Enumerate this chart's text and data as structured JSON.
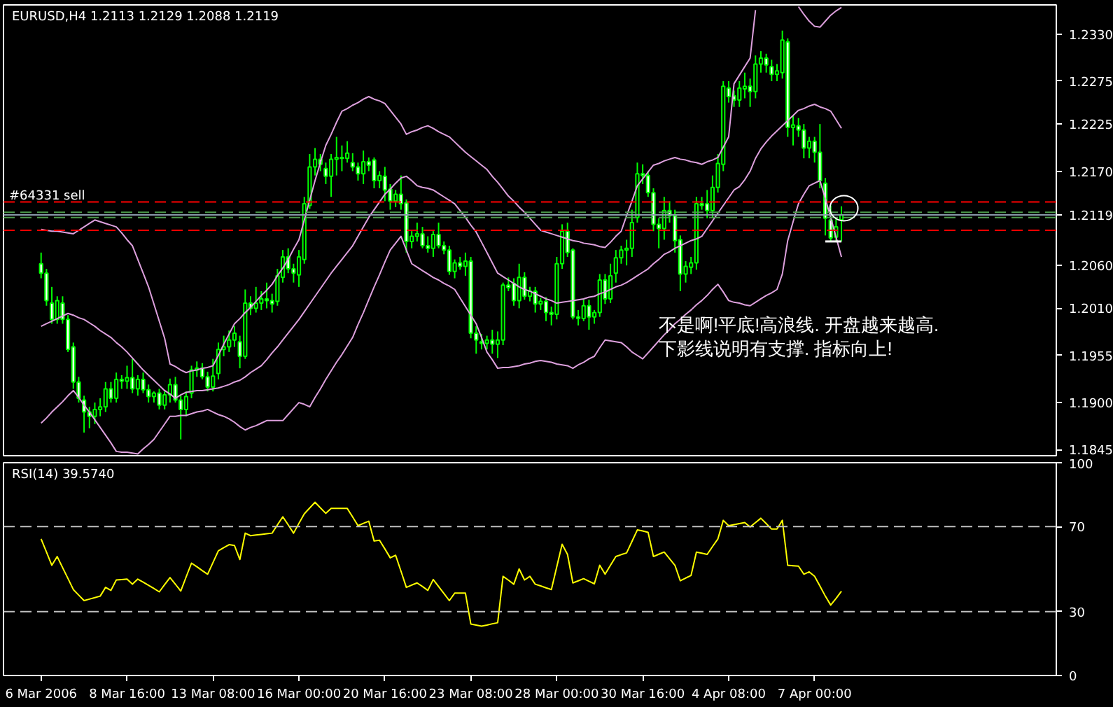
{
  "chart_data": [
    {
      "type": "candlestick",
      "title": "EURUSD,H4  1.2113 1.2129 1.2088 1.2119",
      "annotations": [
        "不是啊!平底!高浪线. 开盘越来越高.",
        "下影线说明有支撑. 指标向上!"
      ],
      "categories": [
        null,
        null,
        null,
        null,
        null,
        null,
        null,
        null,
        null,
        null,
        null,
        null,
        null,
        null,
        null,
        null,
        null,
        null,
        null,
        null,
        null,
        null,
        null,
        null,
        null,
        null,
        null,
        null,
        null,
        null,
        null,
        null,
        null,
        null,
        null,
        null,
        null,
        null,
        null,
        null,
        null,
        null,
        null,
        null,
        null,
        null,
        null,
        null,
        null,
        null,
        null,
        null,
        null,
        null,
        null,
        null,
        null,
        null,
        null,
        null,
        null,
        null,
        null,
        null,
        null,
        null,
        null,
        null,
        null,
        null,
        null,
        null,
        null,
        null,
        null,
        null,
        null,
        null,
        null,
        null,
        null,
        null,
        null,
        null,
        null,
        null,
        null,
        null,
        null,
        null,
        null,
        null,
        null,
        null,
        null,
        null,
        null,
        null,
        null,
        null,
        null,
        null,
        null,
        null,
        null,
        null,
        null,
        null,
        null,
        null,
        null,
        null,
        null,
        null,
        null,
        null,
        null,
        null,
        null,
        null,
        null,
        null,
        null,
        null,
        null,
        null,
        null,
        null,
        null,
        null,
        null,
        null,
        null,
        null,
        null,
        null,
        null,
        null,
        null,
        null,
        null,
        null,
        null,
        null,
        null,
        null,
        null,
        null,
        null,
        null
      ],
      "ylim": [
        1.1838,
        1.2364
      ],
      "yticks": [
        1.1845,
        {
          "value": 1.19,
          "label": "1.1900"
        },
        1.1955,
        {
          "value": 1.201,
          "label": "1.2010"
        },
        {
          "value": 1.206,
          "label": "1.2060"
        },
        1.2119,
        {
          "value": 1.217,
          "label": "1.2170"
        },
        1.2225,
        1.2275,
        {
          "value": 1.233,
          "label": "1.2330"
        }
      ],
      "tick_labels": "y",
      "grid": false,
      "ref_lines": [
        {
          "axis": "y",
          "value": 1.2134,
          "color": "#ff0000",
          "line_style": "dashed",
          "label": null
        },
        {
          "axis": "y",
          "value": 1.2122,
          "color": "#4c9a4c",
          "line_style": "dashed",
          "label": "#64331 sell"
        },
        {
          "axis": "y",
          "value": 1.2116,
          "color": "#4c9a4c",
          "line_style": "dashed",
          "label": null
        },
        {
          "axis": "y",
          "value": 1.2119,
          "color": "#8a9aaa",
          "line_style": "solid",
          "label": null
        },
        {
          "axis": "y",
          "value": 1.2101,
          "color": "#ff0000",
          "line_style": "dashed",
          "label": null
        }
      ],
      "series": [
        {
          "type": "candlestick",
          "color": "#00ff00",
          "ohlc": [
            [
              1.2062,
              1.2075,
              1.2045,
              1.2051
            ],
            [
              1.2051,
              1.2056,
              1.2013,
              1.2019
            ],
            [
              1.2016,
              1.2035,
              1.1992,
              1.1997
            ],
            [
              1.1997,
              1.2024,
              1.1992,
              1.2019
            ],
            [
              1.2016,
              1.2024,
              1.1992,
              1.1997
            ],
            [
              1.1997,
              1.2002,
              1.1959,
              1.1962
            ],
            [
              1.1965,
              1.197,
              1.1916,
              1.1924
            ],
            [
              1.1924,
              1.193,
              1.19,
              1.1905
            ],
            [
              1.1903,
              1.1908,
              1.1865,
              1.1889
            ],
            [
              1.1889,
              1.1895,
              1.187,
              1.1884
            ],
            [
              1.1884,
              1.19,
              1.1875,
              1.1892
            ],
            [
              1.1892,
              1.1905,
              1.1884,
              1.1895
            ],
            [
              1.1895,
              1.1924,
              1.1889,
              1.1916
            ],
            [
              1.1916,
              1.1924,
              1.19,
              1.1905
            ],
            [
              1.1905,
              1.1935,
              1.19,
              1.1927
            ],
            [
              1.1927,
              1.1932,
              1.1916,
              1.1925
            ],
            [
              1.1925,
              1.1943,
              1.1916,
              1.1929
            ],
            [
              1.1929,
              1.1951,
              1.1911,
              1.1916
            ],
            [
              1.1916,
              1.1932,
              1.1908,
              1.1927
            ],
            [
              1.1927,
              1.1935,
              1.1911,
              1.1915
            ],
            [
              1.1915,
              1.1921,
              1.19,
              1.1907
            ],
            [
              1.1907,
              1.1913,
              1.19,
              1.1911
            ],
            [
              1.1911,
              1.1916,
              1.1892,
              1.1897
            ],
            [
              1.1897,
              1.1913,
              1.1892,
              1.1909
            ],
            [
              1.1909,
              1.1928,
              1.19,
              1.1921
            ],
            [
              1.1921,
              1.193,
              1.19,
              1.1903
            ],
            [
              1.1903,
              1.1908,
              1.1857,
              1.1892
            ],
            [
              1.1892,
              1.1913,
              1.1884,
              1.1907
            ],
            [
              1.1911,
              1.1943,
              1.1905,
              1.1938
            ],
            [
              1.1938,
              1.1948,
              1.193,
              1.194
            ],
            [
              1.194,
              1.1946,
              1.1927,
              1.193
            ],
            [
              1.193,
              1.1936,
              1.1913,
              1.1918
            ],
            [
              1.1918,
              1.1951,
              1.1913,
              1.1931
            ],
            [
              1.1934,
              1.197,
              1.1927,
              1.1962
            ],
            [
              1.1962,
              1.1978,
              1.1954,
              1.1965
            ],
            [
              1.1965,
              1.1984,
              1.1959,
              1.1973
            ],
            [
              1.1973,
              1.1989,
              1.1965,
              1.1981
            ],
            [
              1.1971,
              1.1978,
              1.194,
              1.1954
            ],
            [
              1.1954,
              1.2032,
              1.1951,
              1.2016
            ],
            [
              1.2016,
              1.2024,
              1.2002,
              1.201
            ],
            [
              1.201,
              1.2035,
              1.2005,
              1.2016
            ],
            [
              1.2016,
              1.203,
              1.2008,
              1.2021
            ],
            [
              1.2021,
              1.204,
              1.201,
              1.2019
            ],
            [
              1.2019,
              1.2027,
              1.2005,
              1.2015
            ],
            [
              1.2018,
              1.2056,
              1.2013,
              1.2048
            ],
            [
              1.2046,
              1.2078,
              1.204,
              1.207
            ],
            [
              1.207,
              1.208,
              1.2051,
              1.2056
            ],
            [
              1.2056,
              1.2062,
              1.204,
              1.2051
            ],
            [
              1.2049,
              1.2078,
              1.2035,
              1.207
            ],
            [
              1.2067,
              1.214,
              1.2062,
              1.2132
            ],
            [
              1.213,
              1.219,
              1.2126,
              1.2175
            ],
            [
              1.2175,
              1.2197,
              1.2165,
              1.2184
            ],
            [
              1.2184,
              1.219,
              1.217,
              1.2178
            ],
            [
              1.2173,
              1.218,
              1.2155,
              1.2164
            ],
            [
              1.2164,
              1.219,
              1.214,
              1.2184
            ],
            [
              1.2184,
              1.221,
              1.2165,
              1.2186
            ],
            [
              1.2186,
              1.22,
              1.217,
              1.2185
            ],
            [
              1.2185,
              1.2205,
              1.218,
              1.2191
            ],
            [
              1.218,
              1.2191,
              1.217,
              1.2175
            ],
            [
              1.2175,
              1.218,
              1.2159,
              1.2167
            ],
            [
              1.2167,
              1.2194,
              1.2155,
              1.2181
            ],
            [
              1.2181,
              1.2186,
              1.217,
              1.2177
            ],
            [
              1.2183,
              1.2186,
              1.215,
              1.2159
            ],
            [
              1.2159,
              1.217,
              1.215,
              1.2165
            ],
            [
              1.2164,
              1.2175,
              1.2135,
              1.2148
            ],
            [
              1.2149,
              1.2155,
              1.2125,
              1.2135
            ],
            [
              1.2135,
              1.2148,
              1.2128,
              1.2143
            ],
            [
              1.2143,
              1.2165,
              1.2125,
              1.2132
            ],
            [
              1.2133,
              1.2137,
              1.2075,
              1.2088
            ],
            [
              1.2088,
              1.21,
              1.208,
              1.2094
            ],
            [
              1.2094,
              1.211,
              1.2088,
              1.2097
            ],
            [
              1.2097,
              1.2105,
              1.208,
              1.2083
            ],
            [
              1.2083,
              1.2094,
              1.2075,
              1.208
            ],
            [
              1.208,
              1.21,
              1.207,
              1.2096
            ],
            [
              1.2096,
              1.211,
              1.208,
              1.2083
            ],
            [
              1.2083,
              1.2088,
              1.2073,
              1.2078
            ],
            [
              1.2078,
              1.2083,
              1.2049,
              1.2053
            ],
            [
              1.2053,
              1.2067,
              1.2045,
              1.2063
            ],
            [
              1.2063,
              1.207,
              1.2055,
              1.2059
            ],
            [
              1.2059,
              1.2075,
              1.2048,
              1.2065
            ],
            [
              1.2065,
              1.207,
              1.1975,
              1.1981
            ],
            [
              1.1981,
              1.1989,
              1.1957,
              1.1973
            ],
            [
              1.1971,
              1.198,
              1.1962,
              1.1969
            ],
            [
              1.1969,
              1.1978,
              1.1962,
              1.1973
            ],
            [
              1.1973,
              1.1985,
              1.1957,
              1.1968
            ],
            [
              1.1968,
              1.1983,
              1.1952,
              1.1973
            ],
            [
              1.1973,
              1.204,
              1.1967,
              1.2037
            ],
            [
              1.2037,
              1.2046,
              1.203,
              1.2034
            ],
            [
              1.2039,
              1.2045,
              1.2013,
              1.2019
            ],
            [
              1.2019,
              1.2062,
              1.201,
              1.2046
            ],
            [
              1.2046,
              1.2052,
              1.202,
              1.2024
            ],
            [
              1.2024,
              1.2035,
              1.2018,
              1.203
            ],
            [
              1.203,
              1.2035,
              1.2005,
              1.2015
            ],
            [
              1.2015,
              1.2022,
              1.2008,
              1.2018
            ],
            [
              1.2018,
              1.2023,
              1.1995,
              1.2005
            ],
            [
              1.2005,
              1.2012,
              1.199,
              1.2003
            ],
            [
              1.2003,
              1.207,
              1.1997,
              1.2062
            ],
            [
              1.2062,
              1.2108,
              1.2056,
              1.21
            ],
            [
              1.21,
              1.211,
              1.207,
              1.2075
            ],
            [
              1.2078,
              1.208,
              1.1997,
              1.2
            ],
            [
              1.2,
              1.2008,
              1.199,
              1.1998
            ],
            [
              1.1998,
              1.202,
              1.1995,
              1.2013
            ],
            [
              1.2013,
              1.202,
              1.1985,
              1.2
            ],
            [
              1.2,
              1.2008,
              1.1992,
              1.2005
            ],
            [
              1.2005,
              1.205,
              1.2,
              1.2043
            ],
            [
              1.2043,
              1.205,
              1.2015,
              1.2021
            ],
            [
              1.2021,
              1.2062,
              1.2016,
              1.2048
            ],
            [
              1.2051,
              1.2078,
              1.204,
              1.2069
            ],
            [
              1.2069,
              1.2083,
              1.2062,
              1.2078
            ],
            [
              1.2078,
              1.209,
              1.206,
              1.208
            ],
            [
              1.208,
              1.2125,
              1.207,
              1.211
            ],
            [
              1.2116,
              1.218,
              1.211,
              1.2167
            ],
            [
              1.2167,
              1.2178,
              1.2155,
              1.2165
            ],
            [
              1.2165,
              1.217,
              1.214,
              1.2145
            ],
            [
              1.2145,
              1.215,
              1.21,
              1.2108
            ],
            [
              1.2108,
              1.2115,
              1.208,
              1.2103
            ],
            [
              1.2103,
              1.214,
              1.209,
              1.2124
            ],
            [
              1.2124,
              1.2135,
              1.211,
              1.2118
            ],
            [
              1.2118,
              1.2125,
              1.2075,
              1.2089
            ],
            [
              1.209,
              1.2095,
              1.203,
              1.205
            ],
            [
              1.205,
              1.2065,
              1.204,
              1.2059
            ],
            [
              1.2058,
              1.207,
              1.205,
              1.2063
            ],
            [
              1.2063,
              1.214,
              1.2055,
              1.2132
            ],
            [
              1.2132,
              1.214,
              1.2125,
              1.213
            ],
            [
              1.2132,
              1.2148,
              1.2115,
              1.2124
            ],
            [
              1.2124,
              1.2165,
              1.2115,
              1.2151
            ],
            [
              1.2151,
              1.219,
              1.2145,
              1.2179
            ],
            [
              1.2178,
              1.2275,
              1.217,
              1.2269
            ],
            [
              1.2267,
              1.2275,
              1.225,
              1.2257
            ],
            [
              1.2258,
              1.2264,
              1.2245,
              1.2253
            ],
            [
              1.2253,
              1.2275,
              1.2245,
              1.2267
            ],
            [
              1.2266,
              1.2285,
              1.2255,
              1.2269
            ],
            [
              1.2269,
              1.2278,
              1.2245,
              1.2263
            ],
            [
              1.2263,
              1.2305,
              1.2255,
              1.2295
            ],
            [
              1.2295,
              1.231,
              1.2285,
              1.2302
            ],
            [
              1.2302,
              1.2307,
              1.2285,
              1.2294
            ],
            [
              1.2292,
              1.23,
              1.2275,
              1.2283
            ],
            [
              1.2283,
              1.2295,
              1.2275,
              1.2287
            ],
            [
              1.2285,
              1.2334,
              1.2278,
              1.2323
            ],
            [
              1.2321,
              1.2325,
              1.221,
              1.2221
            ],
            [
              1.2221,
              1.2235,
              1.22,
              1.2224
            ],
            [
              1.2223,
              1.2232,
              1.221,
              1.2218
            ],
            [
              1.2218,
              1.2225,
              1.2185,
              1.2197
            ],
            [
              1.2197,
              1.221,
              1.2185,
              1.2205
            ],
            [
              1.2205,
              1.221,
              1.218,
              1.2192
            ],
            [
              1.2192,
              1.2225,
              1.215,
              1.2159
            ],
            [
              1.2156,
              1.2162,
              1.2095,
              1.2115
            ],
            [
              1.2113,
              1.213,
              1.2088,
              1.2092
            ],
            [
              1.2093,
              1.2115,
              1.2088,
              1.2105
            ],
            [
              1.2113,
              1.2129,
              1.2088,
              1.2119
            ]
          ]
        },
        {
          "type": "line",
          "color": "#dda0dd",
          "values": [
            1.2102,
            1.2101,
            1.21,
            1.21,
            1.2099,
            1.2098,
            1.2097,
            1.2101,
            1.2105,
            1.2109,
            1.2113,
            1.2111,
            1.2109,
            1.2107,
            1.2105,
            1.2098,
            1.209,
            1.2083,
            1.2067,
            1.2051,
            1.2035,
            1.2015,
            1.1995,
            1.1975,
            1.1945,
            1.1942,
            1.1938,
            1.1935,
            1.1937,
            1.1938,
            1.194,
            1.1941,
            1.1943,
            1.1955,
            1.1968,
            1.198,
            1.1992,
            1.1998,
            1.2005,
            1.2011,
            1.2018,
            1.2025,
            1.2031,
            1.2038,
            1.2048,
            1.2057,
            1.2067,
            1.2079,
            1.209,
            1.2113,
            1.2136,
            1.2159,
            1.218,
            1.22,
            1.2213,
            1.2227,
            1.224,
            1.2243,
            1.2247,
            1.225,
            1.2254,
            1.2257,
            1.2254,
            1.2252,
            1.2249,
            1.2241,
            1.2233,
            1.2225,
            1.2213,
            1.2216,
            1.2218,
            1.2221,
            1.2223,
            1.222,
            1.2216,
            1.2213,
            1.221,
            1.2204,
            1.2198,
            1.2192,
            1.2187,
            1.2182,
            1.2177,
            1.2172,
            1.2164,
            1.2157,
            1.2149,
            1.2141,
            1.2135,
            1.2128,
            1.2122,
            1.2115,
            1.2108,
            1.2101,
            1.2099,
            1.2097,
            1.2095,
            1.2093,
            1.2091,
            1.2089,
            1.2088,
            1.2086,
            1.2085,
            1.2084,
            1.2082,
            1.2081,
            1.2087,
            1.2094,
            1.21,
            1.2118,
            1.2135,
            1.2153,
            1.2161,
            1.2169,
            1.2177,
            1.2179,
            1.2182,
            1.2184,
            1.2186,
            1.2184,
            1.2183,
            1.2181,
            1.218,
            1.2178,
            1.2181,
            1.2183,
            1.2186,
            1.2198,
            1.221,
            1.2272,
            1.2282,
            1.2292,
            1.2302,
            1.2358,
            null,
            null,
            null,
            null,
            null,
            null,
            null,
            1.2362,
            1.2353,
            1.2345,
            1.2339,
            1.2338,
            1.2345,
            1.2352,
            1.2357,
            1.2361
          ]
        },
        {
          "type": "line",
          "color": "#dda0dd",
          "values": [
            1.1989,
            1.1992,
            1.1995,
            1.1998,
            1.2001,
            1.2004,
            1.2002,
            1.1999,
            1.1997,
            1.1993,
            1.1989,
            1.1984,
            1.198,
            1.1976,
            1.197,
            1.1965,
            1.1959,
            1.1952,
            1.1945,
            1.1938,
            1.1932,
            1.1926,
            1.192,
            1.1914,
            1.191,
            1.1905,
            1.1909,
            1.1912,
            1.1913,
            1.1914,
            1.1914,
            1.1915,
            1.1916,
            1.1917,
            1.1919,
            1.1921,
            1.1924,
            1.1926,
            1.193,
            1.1935,
            1.1939,
            1.1943,
            1.195,
            1.1958,
            1.1965,
            1.1973,
            1.1981,
            1.1989,
            1.1997,
            1.2006,
            1.2015,
            1.2024,
            1.2033,
            1.2042,
            1.2051,
            1.2059,
            1.2067,
            1.2075,
            1.2083,
            1.2094,
            1.2105,
            1.2116,
            1.2125,
            1.2134,
            1.2143,
            1.2149,
            1.2156,
            1.2162,
            1.2164,
            1.2159,
            1.2153,
            1.2151,
            1.215,
            1.2148,
            1.2144,
            1.214,
            1.2136,
            1.2132,
            1.2124,
            1.2116,
            1.2107,
            1.2099,
            1.2087,
            1.2075,
            1.2063,
            1.2051,
            1.2047,
            1.2043,
            1.2039,
            1.2035,
            1.2032,
            1.203,
            1.2027,
            1.2024,
            1.2021,
            1.2019,
            1.2016,
            1.2017,
            1.2018,
            1.2019,
            1.202,
            1.2021,
            1.2023,
            1.2024,
            1.2027,
            1.2029,
            1.2032,
            1.2035,
            1.2037,
            1.204,
            1.2044,
            1.2048,
            1.2052,
            1.2056,
            1.2062,
            1.2067,
            1.2073,
            1.2076,
            1.208,
            1.2083,
            1.2086,
            1.2089,
            1.2091,
            1.2094,
            1.2103,
            1.2112,
            1.2121,
            1.213,
            1.2139,
            1.2148,
            1.2152,
            1.216,
            1.217,
            1.2185,
            1.2196,
            1.2204,
            1.2211,
            1.2217,
            1.2223,
            1.2229,
            1.2235,
            1.2241,
            1.2243,
            1.2246,
            1.2248,
            1.2245,
            1.2243,
            1.224,
            1.223,
            1.222
          ]
        },
        {
          "type": "line",
          "color": "#dda0dd",
          "values": [
            1.1876,
            1.1882,
            1.1889,
            1.1895,
            1.1901,
            1.1908,
            1.1914,
            1.1906,
            1.1897,
            1.1889,
            1.188,
            1.1871,
            1.1862,
            1.1853,
            1.1843,
            1.1842,
            1.1842,
            1.1841,
            1.184,
            1.1846,
            1.1851,
            1.1857,
            1.1866,
            1.1875,
            1.1884,
            1.1884,
            1.1885,
            1.1885,
            1.1887,
            1.1889,
            1.189,
            1.1892,
            1.1889,
            1.1886,
            1.1884,
            1.1881,
            1.1877,
            1.1872,
            1.1868,
            1.1871,
            1.1873,
            1.1876,
            1.1879,
            1.1879,
            1.1879,
            1.1879,
            1.1886,
            1.1893,
            1.19,
            1.1898,
            1.1895,
            1.1906,
            1.1916,
            1.1927,
            1.1937,
            1.1947,
            1.1956,
            1.1966,
            1.1976,
            1.1991,
            1.2005,
            1.202,
            1.2035,
            1.2049,
            1.2064,
            1.2078,
            1.2086,
            1.2094,
            1.2078,
            1.2062,
            1.2058,
            1.2054,
            1.205,
            1.2046,
            1.2043,
            1.2039,
            1.2036,
            1.2032,
            1.2022,
            1.2012,
            1.2002,
            1.1992,
            1.1976,
            1.1959,
            1.195,
            1.194,
            1.1941,
            1.1941,
            1.1942,
            1.1943,
            1.1945,
            1.1946,
            1.1948,
            1.1949,
            1.1948,
            1.1947,
            1.1945,
            1.1944,
            1.1943,
            1.194,
            1.1944,
            1.1947,
            1.1951,
            1.1954,
            1.1964,
            1.1973,
            1.1972,
            1.1971,
            1.197,
            1.1965,
            1.1959,
            1.1955,
            1.1951,
            1.1958,
            1.1965,
            1.1972,
            1.1979,
            1.1985,
            1.1992,
            1.1997,
            1.2003,
            1.2008,
            1.2014,
            1.2019,
            1.2025,
            1.2032,
            1.2038,
            1.2029,
            1.2019,
            1.2017,
            1.2016,
            1.2014,
            1.2013,
            1.2017,
            1.2021,
            1.2025,
            1.2028,
            1.2032,
            1.205,
            1.2089,
            1.2111,
            1.2132,
            1.2143,
            1.2153,
            1.2156,
            1.2159,
            1.2138,
            1.2116,
            1.2093,
            1.207
          ]
        },
        {
          "type": "line",
          "color": "#ffffff",
          "values": [
            null,
            null,
            null,
            null,
            null,
            null,
            null,
            null,
            null,
            null,
            null,
            null,
            null,
            null,
            null,
            null,
            null,
            null,
            null,
            null,
            null,
            null,
            null,
            null,
            null,
            null,
            null,
            null,
            null,
            null,
            null,
            null,
            null,
            null,
            null,
            null,
            null,
            null,
            null,
            null,
            null,
            null,
            null,
            null,
            null,
            null,
            null,
            null,
            null,
            null,
            null,
            null,
            null,
            null,
            null,
            null,
            null,
            null,
            null,
            null,
            null,
            null,
            null,
            null,
            null,
            null,
            null,
            null,
            null,
            null,
            null,
            null,
            null,
            null,
            null,
            null,
            null,
            null,
            null,
            null,
            null,
            null,
            null,
            null,
            null,
            null,
            null,
            null,
            null,
            null,
            null,
            null,
            null,
            null,
            null,
            null,
            null,
            null,
            null,
            null,
            null,
            null,
            null,
            null,
            null,
            null,
            null,
            null,
            null,
            null,
            null,
            null,
            null,
            null,
            null,
            null,
            null,
            null,
            null,
            null,
            null,
            null,
            null,
            null,
            null,
            null,
            null,
            null,
            null,
            null,
            null,
            null,
            null,
            null,
            null,
            null,
            null,
            null,
            null,
            null,
            null,
            null,
            null,
            null,
            null,
            null,
            1.2088,
            1.2088,
            1.2088,
            1.2088
          ]
        }
      ]
    },
    {
      "type": "line",
      "title": "RSI(14) 39.5740",
      "ylim": [
        0,
        100
      ],
      "yticks": [
        0,
        30,
        70,
        100
      ],
      "categories": [
        "6 Mar 2006",
        null,
        null,
        null,
        null,
        null,
        null,
        null,
        null,
        null,
        null,
        null,
        null,
        null,
        null,
        null,
        "8 Mar 16:00",
        null,
        null,
        null,
        null,
        null,
        null,
        null,
        null,
        null,
        null,
        null,
        null,
        null,
        null,
        null,
        "13 Mar 08:00",
        null,
        null,
        null,
        null,
        null,
        null,
        null,
        null,
        null,
        null,
        null,
        null,
        null,
        null,
        null,
        "16 Mar 00:00",
        null,
        null,
        null,
        null,
        null,
        null,
        null,
        null,
        null,
        null,
        null,
        null,
        null,
        null,
        null,
        "20 Mar 16:00",
        null,
        null,
        null,
        null,
        null,
        null,
        null,
        null,
        null,
        null,
        null,
        null,
        null,
        null,
        null,
        "23 Mar 08:00",
        null,
        null,
        null,
        null,
        null,
        null,
        null,
        null,
        null,
        null,
        null,
        null,
        null,
        null,
        null,
        "28 Mar 00:00",
        null,
        null,
        null,
        null,
        null,
        null,
        null,
        null,
        null,
        null,
        null,
        null,
        null,
        null,
        null,
        "30 Mar 16:00",
        null,
        null,
        null,
        null,
        null,
        null,
        null,
        null,
        null,
        null,
        null,
        null,
        null,
        null,
        null,
        "4 Apr 08:00",
        null,
        null,
        null,
        null,
        null,
        null,
        null,
        null,
        null,
        null,
        null,
        null,
        null,
        null,
        null,
        "7 Apr 00:00",
        null,
        null,
        null,
        null,
        null
      ],
      "grid": false,
      "ref_lines": [
        {
          "axis": "y",
          "value": 70,
          "color": "#c0c0c0",
          "line_style": "dashed",
          "label": null
        },
        {
          "axis": "y",
          "value": 30,
          "color": "#c0c0c0",
          "line_style": "dashed",
          "label": null
        }
      ],
      "series": [
        {
          "color": "#ffff00",
          "values": [
            64.2,
            58.0,
            51.8,
            55.9,
            50.7,
            45.6,
            40.4,
            37.8,
            35.2,
            35.9,
            36.6,
            37.3,
            41.4,
            40.0,
            44.9,
            45.1,
            45.3,
            42.9,
            45.3,
            43.9,
            42.4,
            40.9,
            39.3,
            42.7,
            46.0,
            42.9,
            39.7,
            46.3,
            52.8,
            51.1,
            49.3,
            47.6,
            53.1,
            58.6,
            60.1,
            61.5,
            61.1,
            54.5,
            66.9,
            65.7,
            66.0,
            66.3,
            66.6,
            66.9,
            70.8,
            74.6,
            70.8,
            66.9,
            71.5,
            76.0,
            78.7,
            81.4,
            78.8,
            76.2,
            78.5,
            78.5,
            78.5,
            78.5,
            74.5,
            70.4,
            71.5,
            72.5,
            63.2,
            63.6,
            59.5,
            55.3,
            56.5,
            49.0,
            41.4,
            42.5,
            43.5,
            41.8,
            40.0,
            45.1,
            41.8,
            38.5,
            35.2,
            38.7,
            38.7,
            38.7,
            24.2,
            23.7,
            23.2,
            23.7,
            24.3,
            24.8,
            46.6,
            44.8,
            42.9,
            50.1,
            44.9,
            46.6,
            42.9,
            42.1,
            41.2,
            40.4,
            51.1,
            61.7,
            56.9,
            43.5,
            44.5,
            45.5,
            44.3,
            43.1,
            51.8,
            47.6,
            51.8,
            55.9,
            56.8,
            57.6,
            63.0,
            68.4,
            67.9,
            67.3,
            55.9,
            57.0,
            58.0,
            54.9,
            51.8,
            44.5,
            45.8,
            47.0,
            58.0,
            57.5,
            56.9,
            60.6,
            64.2,
            72.9,
            70.4,
            70.9,
            71.4,
            71.9,
            69.8,
            71.9,
            73.9,
            71.4,
            68.8,
            68.8,
            72.9,
            51.8,
            51.6,
            51.4,
            47.6,
            48.7,
            46.6,
            42.0,
            37.3,
            33.1,
            36.2,
            39.6
          ]
        }
      ]
    }
  ]
}
